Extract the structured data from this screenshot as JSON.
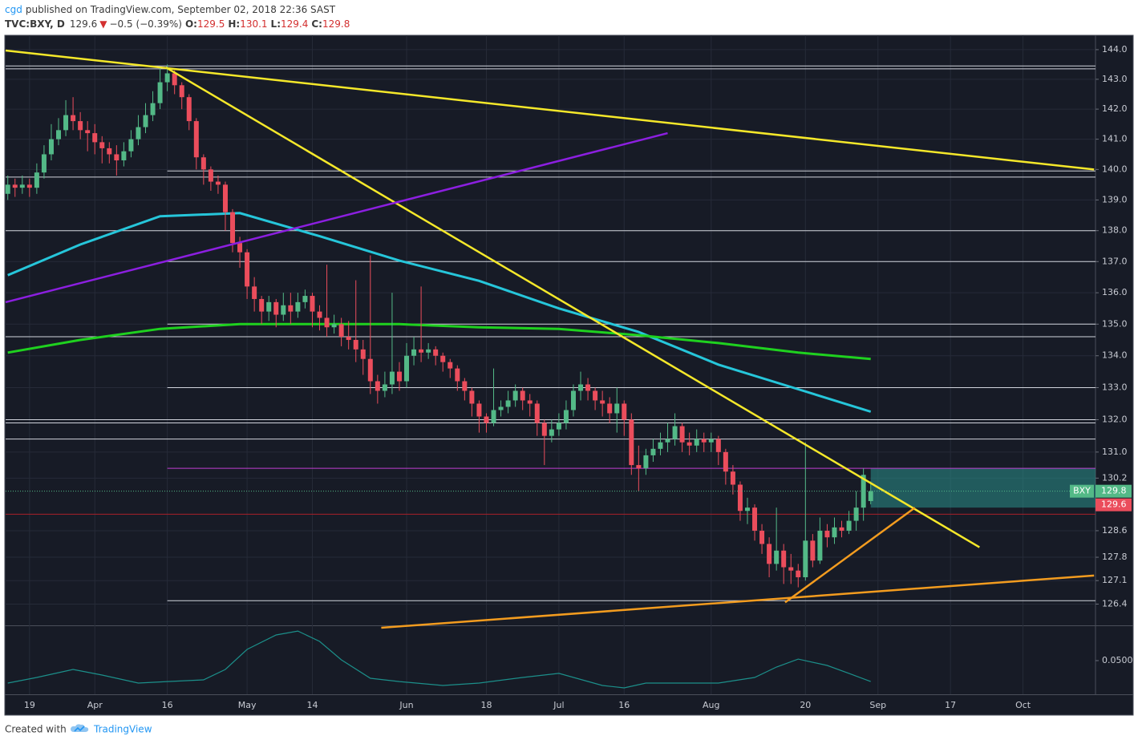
{
  "header": {
    "author": "cgd",
    "published": "published on TradingView.com, September 02, 2018 22:36 SAST",
    "symbol": "TVC:BXY, D",
    "price": "129.6",
    "direction": "▼",
    "change": "−0.5 (−0.39%)",
    "ohlc": [
      {
        "key": "O:",
        "value": "129.5"
      },
      {
        "key": "H:",
        "value": "130.1"
      },
      {
        "key": "L:",
        "value": "129.4"
      },
      {
        "key": "C:",
        "value": "129.8"
      }
    ]
  },
  "footer": {
    "created": "Created with",
    "brand": "TradingView"
  },
  "chart_data": {
    "type": "candlestick",
    "log_scale": true,
    "grid": true,
    "up_color": "#53b987",
    "down_color": "#eb4d5c",
    "xlim": [
      -0.3,
      150
    ],
    "ylim": [
      125.77,
      144.46
    ],
    "xticks": [
      {
        "value": 3,
        "label": "19"
      },
      {
        "value": 12,
        "label": "Apr"
      },
      {
        "value": 22,
        "label": "16"
      },
      {
        "value": 33,
        "label": "May"
      },
      {
        "value": 42,
        "label": "14"
      },
      {
        "value": 55,
        "label": "Jun"
      },
      {
        "value": 66,
        "label": "18"
      },
      {
        "value": 76,
        "label": "Jul"
      },
      {
        "value": 85,
        "label": "16"
      },
      {
        "value": 97,
        "label": "Aug"
      },
      {
        "value": 110,
        "label": "20"
      },
      {
        "value": 120,
        "label": "Sep"
      },
      {
        "value": 130,
        "label": "17"
      },
      {
        "value": 140,
        "label": "Oct"
      }
    ],
    "yticks": [
      {
        "value": 144,
        "label": "144.0"
      },
      {
        "value": 143,
        "label": "143.0"
      },
      {
        "value": 142,
        "label": "142.0"
      },
      {
        "value": 141,
        "label": "141.0"
      },
      {
        "value": 140,
        "label": "140.0"
      },
      {
        "value": 139,
        "label": "139.0"
      },
      {
        "value": 138,
        "label": "138.0"
      },
      {
        "value": 137,
        "label": "137.0"
      },
      {
        "value": 136,
        "label": "136.0"
      },
      {
        "value": 135,
        "label": "135.0"
      },
      {
        "value": 134,
        "label": "134.0"
      },
      {
        "value": 133,
        "label": "133.0"
      },
      {
        "value": 132,
        "label": "132.0"
      },
      {
        "value": 131,
        "label": "131.0"
      },
      130.2,
      128.6,
      127.8,
      127.1,
      126.4
    ],
    "candles": {
      "x": [
        0,
        1,
        2,
        3,
        4,
        5,
        6,
        7,
        8,
        9,
        10,
        11,
        12,
        13,
        14,
        15,
        16,
        17,
        18,
        19,
        20,
        21,
        22,
        23,
        24,
        25,
        26,
        27,
        28,
        29,
        30,
        31,
        32,
        33,
        34,
        35,
        36,
        37,
        38,
        39,
        40,
        41,
        42,
        43,
        44,
        45,
        46,
        47,
        48,
        49,
        50,
        51,
        52,
        53,
        54,
        55,
        56,
        57,
        58,
        59,
        60,
        61,
        62,
        63,
        64,
        65,
        66,
        67,
        68,
        69,
        70,
        71,
        72,
        73,
        74,
        75,
        76,
        77,
        78,
        79,
        80,
        81,
        82,
        83,
        84,
        85,
        86,
        87,
        88,
        89,
        90,
        91,
        92,
        93,
        94,
        95,
        96,
        97,
        98,
        99,
        100,
        101,
        102,
        103,
        104,
        105,
        106,
        107,
        108,
        109,
        110,
        111,
        112,
        113,
        114,
        115,
        116,
        117,
        118,
        119
      ],
      "open": [
        139.2,
        139.5,
        139.4,
        139.5,
        139.4,
        139.9,
        140.5,
        141.0,
        141.3,
        141.8,
        141.6,
        141.3,
        141.2,
        140.9,
        140.7,
        140.5,
        140.3,
        140.6,
        141.0,
        141.4,
        141.8,
        142.2,
        142.9,
        143.2,
        142.8,
        142.4,
        141.6,
        140.4,
        140.0,
        139.6,
        139.5,
        138.6,
        137.6,
        137.3,
        136.2,
        135.8,
        135.4,
        135.7,
        135.3,
        135.6,
        135.4,
        135.7,
        135.9,
        135.4,
        135.2,
        134.9,
        135.0,
        134.6,
        134.5,
        134.2,
        133.9,
        133.2,
        132.9,
        133.1,
        133.5,
        133.2,
        134.0,
        134.2,
        134.1,
        134.2,
        134.0,
        133.8,
        133.6,
        133.2,
        132.9,
        132.5,
        132.1,
        131.9,
        132.3,
        132.4,
        132.6,
        132.9,
        132.6,
        132.5,
        131.9,
        131.5,
        131.7,
        131.9,
        132.3,
        132.9,
        133.1,
        132.9,
        132.6,
        132.5,
        132.2,
        132.5,
        132.0,
        130.6,
        130.5,
        130.9,
        131.1,
        131.3,
        131.4,
        131.8,
        131.3,
        131.2,
        131.4,
        131.3,
        131.4,
        131.0,
        130.4,
        130.0,
        129.2,
        129.3,
        128.6,
        128.2,
        127.6,
        128.0,
        127.5,
        127.4,
        127.2,
        128.3,
        127.7,
        128.6,
        128.4,
        128.7,
        128.6,
        128.9,
        129.3,
        129.5
      ],
      "high": [
        139.8,
        139.7,
        139.8,
        139.7,
        140.2,
        140.8,
        141.5,
        141.7,
        142.3,
        142.4,
        141.9,
        141.6,
        141.5,
        141.1,
        140.9,
        140.8,
        140.9,
        141.3,
        141.8,
        142.2,
        142.6,
        143.4,
        143.5,
        143.3,
        142.9,
        142.5,
        141.7,
        140.5,
        140.1,
        139.8,
        139.6,
        138.7,
        137.8,
        137.4,
        136.5,
        135.9,
        135.9,
        135.8,
        136.0,
        136.0,
        136.0,
        136.1,
        136.0,
        135.6,
        136.9,
        135.3,
        135.2,
        135.1,
        136.4,
        134.5,
        137.2,
        133.4,
        133.5,
        136.0,
        133.8,
        134.4,
        134.6,
        136.2,
        134.4,
        134.3,
        134.1,
        133.9,
        133.7,
        133.3,
        133.0,
        132.6,
        132.2,
        133.6,
        132.6,
        132.9,
        133.1,
        133.0,
        132.8,
        132.6,
        132.0,
        132.0,
        132.2,
        132.6,
        133.1,
        133.5,
        133.3,
        133.0,
        132.9,
        132.7,
        133.0,
        132.6,
        132.2,
        131.2,
        131.1,
        131.4,
        131.6,
        131.9,
        132.2,
        131.9,
        131.6,
        131.7,
        131.6,
        131.6,
        131.5,
        131.1,
        130.6,
        130.1,
        129.6,
        129.4,
        128.8,
        128.4,
        129.3,
        128.2,
        127.9,
        127.6,
        131.3,
        128.5,
        129.0,
        128.8,
        129.0,
        128.9,
        129.2,
        129.8,
        130.5,
        130.1
      ],
      "low": [
        139.0,
        139.1,
        139.2,
        139.1,
        139.2,
        139.7,
        140.3,
        140.8,
        141.1,
        141.3,
        141.0,
        140.6,
        140.5,
        140.2,
        140.2,
        139.8,
        140.1,
        140.4,
        140.8,
        141.2,
        141.6,
        142.0,
        142.6,
        142.5,
        142.0,
        141.3,
        140.0,
        139.5,
        139.3,
        139.2,
        138.0,
        137.3,
        136.8,
        135.8,
        135.4,
        135.0,
        135.1,
        134.9,
        135.1,
        135.0,
        135.2,
        135.5,
        134.9,
        134.8,
        134.6,
        134.7,
        134.3,
        134.2,
        133.8,
        133.4,
        132.8,
        132.5,
        132.7,
        132.8,
        132.9,
        133.0,
        133.7,
        133.8,
        133.9,
        133.7,
        133.5,
        133.3,
        132.9,
        132.6,
        132.1,
        131.6,
        131.6,
        131.8,
        132.1,
        132.2,
        132.4,
        132.3,
        132.1,
        131.5,
        130.6,
        131.3,
        131.5,
        131.7,
        132.1,
        132.6,
        132.6,
        132.3,
        132.1,
        131.9,
        131.6,
        131.5,
        130.3,
        129.8,
        130.3,
        130.7,
        130.9,
        131.0,
        131.2,
        131.0,
        130.9,
        131.0,
        131.0,
        131.0,
        130.6,
        130.0,
        129.7,
        128.9,
        128.8,
        128.3,
        127.9,
        127.2,
        127.4,
        127.0,
        127.0,
        126.9,
        127.1,
        127.5,
        127.6,
        128.1,
        128.2,
        128.4,
        128.5,
        128.6,
        128.9,
        129.4
      ],
      "close": [
        139.5,
        139.4,
        139.5,
        139.4,
        139.9,
        140.5,
        141.0,
        141.3,
        141.8,
        141.6,
        141.3,
        141.2,
        140.9,
        140.7,
        140.5,
        140.3,
        140.6,
        141.0,
        141.4,
        141.8,
        142.2,
        142.9,
        143.2,
        142.8,
        142.4,
        141.6,
        140.4,
        140.0,
        139.6,
        139.5,
        138.6,
        137.6,
        137.3,
        136.2,
        135.8,
        135.4,
        135.7,
        135.3,
        135.6,
        135.4,
        135.7,
        135.9,
        135.4,
        135.2,
        134.9,
        135.0,
        134.6,
        134.5,
        134.2,
        133.9,
        133.2,
        132.9,
        133.1,
        133.5,
        133.2,
        134.0,
        134.2,
        134.1,
        134.2,
        134.0,
        133.8,
        133.6,
        133.2,
        132.9,
        132.5,
        132.1,
        131.9,
        132.3,
        132.4,
        132.6,
        132.9,
        132.6,
        132.5,
        131.9,
        131.5,
        131.7,
        131.9,
        132.3,
        132.9,
        133.1,
        132.9,
        132.6,
        132.5,
        132.2,
        132.5,
        132.0,
        130.6,
        130.5,
        130.9,
        131.1,
        131.3,
        131.4,
        131.8,
        131.3,
        131.2,
        131.4,
        131.3,
        131.4,
        131.0,
        130.4,
        130.0,
        129.2,
        129.3,
        128.6,
        128.2,
        127.6,
        128.0,
        127.5,
        127.4,
        127.2,
        128.3,
        127.7,
        128.6,
        128.4,
        128.7,
        128.6,
        128.9,
        129.3,
        130.3,
        129.8
      ]
    },
    "moving_averages": [
      {
        "color": "#26c6da",
        "x": [
          0,
          10,
          21,
          32,
          43,
          54,
          65,
          76,
          87,
          98,
          109,
          119
        ],
        "values": [
          136.56,
          137.55,
          138.47,
          138.57,
          137.82,
          137.03,
          136.38,
          135.5,
          134.75,
          133.72,
          132.95,
          132.25
        ]
      },
      {
        "color": "#1fd11f",
        "x": [
          0,
          10,
          21,
          32,
          43,
          54,
          65,
          76,
          87,
          98,
          109,
          119
        ],
        "values": [
          134.1,
          134.5,
          134.85,
          135.0,
          135.0,
          135.0,
          134.9,
          134.85,
          134.65,
          134.4,
          134.1,
          133.9
        ]
      }
    ],
    "trend_lines": [
      {
        "color": "#f5e82a",
        "x": [
          -0.3,
          149.8
        ],
        "y": [
          143.97,
          140.0
        ]
      },
      {
        "color": "#f5e82a",
        "x": [
          21.8,
          134
        ],
        "y": [
          143.4,
          128.1
        ]
      },
      {
        "color": "#8c1fe0",
        "x": [
          -0.3,
          91
        ],
        "y": [
          135.7,
          141.2
        ]
      },
      {
        "color": "#f39c1f",
        "x": [
          51.5,
          149.8
        ],
        "y": [
          125.7,
          127.25
        ]
      },
      {
        "color": "#f39c1f",
        "x": [
          107.2,
          125.1
        ],
        "y": [
          126.45,
          129.3
        ]
      }
    ],
    "levels": {
      "color": "#d1d4dc",
      "values": [
        143.45,
        143.35,
        139.95,
        139.75,
        138.0,
        137.0,
        135.0,
        134.6,
        133.0,
        132.0,
        131.9,
        131.4,
        126.5
      ],
      "from": [
        -0.3,
        -0.3,
        22,
        -0.3,
        -0.3,
        22,
        22,
        -0.3,
        22,
        -0.3,
        -0.3,
        -0.3,
        22
      ]
    },
    "magenta_level": {
      "color": "#c03fd0",
      "value": 130.5,
      "from": 22
    },
    "red_level": {
      "color": "#a8202a",
      "value": 129.1
    },
    "zone": {
      "color": "#2a8f8a",
      "from": 119,
      "y": [
        129.3,
        130.5
      ]
    },
    "price_tags": [
      {
        "name": "BXY",
        "value": 129.8,
        "color": "#53b987"
      },
      {
        "value": 129.6,
        "color": "#eb4d5c"
      }
    ],
    "oscillator": {
      "color": "#1c8f8a",
      "ylim": [
        0.026,
        0.074
      ],
      "yticks": [
        {
          "value": 0.05,
          "label": "0.0500"
        }
      ],
      "x": [
        0,
        4,
        9,
        13,
        18,
        22,
        27,
        30,
        33,
        37,
        40,
        43,
        46,
        50,
        54,
        60,
        65,
        71,
        76,
        82,
        85,
        88,
        93,
        98,
        103,
        106,
        109,
        113,
        116,
        119
      ],
      "values": [
        0.034,
        0.038,
        0.0437,
        0.0397,
        0.034,
        0.0351,
        0.0363,
        0.0437,
        0.058,
        0.0683,
        0.0711,
        0.0637,
        0.0506,
        0.0374,
        0.0351,
        0.0323,
        0.034,
        0.038,
        0.0409,
        0.0323,
        0.0306,
        0.034,
        0.034,
        0.034,
        0.038,
        0.0454,
        0.0511,
        0.0466,
        0.0409,
        0.0351
      ]
    }
  }
}
